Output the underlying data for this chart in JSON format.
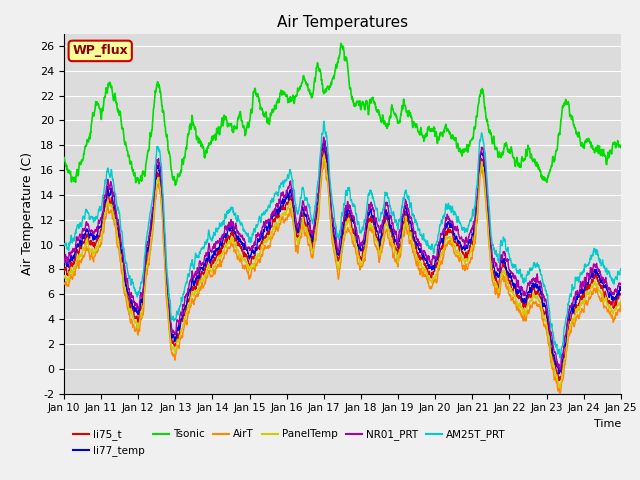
{
  "title": "Air Temperatures",
  "xlabel": "Time",
  "ylabel": "Air Temperature (C)",
  "ylim": [
    -2,
    27
  ],
  "yticks": [
    -2,
    0,
    2,
    4,
    6,
    8,
    10,
    12,
    14,
    16,
    18,
    20,
    22,
    24,
    26
  ],
  "bg_color": "#dcdcdc",
  "grid_color": "#ffffff",
  "series_order": [
    "li75_t",
    "li77_temp",
    "Tsonic",
    "AirT",
    "PanelTemp",
    "NR01_PRT",
    "AM25T_PRT"
  ],
  "series_colors": {
    "li75_t": "#dd0000",
    "li77_temp": "#0000dd",
    "Tsonic": "#00dd00",
    "AirT": "#ff8800",
    "PanelTemp": "#cccc00",
    "NR01_PRT": "#aa00aa",
    "AM25T_PRT": "#00cccc"
  },
  "series_lw": {
    "li75_t": 1.0,
    "li77_temp": 1.0,
    "Tsonic": 1.2,
    "AirT": 1.0,
    "PanelTemp": 1.0,
    "NR01_PRT": 1.0,
    "AM25T_PRT": 1.0
  },
  "wp_flux_facecolor": "#ffff99",
  "wp_flux_edgecolor": "#cc0000",
  "wp_flux_textcolor": "#880000",
  "xtick_labels": [
    "Jan 10",
    "Jan 11",
    "Jan 12",
    "Jan 13",
    "Jan 14",
    "Jan 15",
    "Jan 16",
    "Jan 17",
    "Jan 18",
    "Jan 19",
    "Jan 20",
    "Jan 21",
    "Jan 22",
    "Jan 23",
    "Jan 24",
    "Jan 25"
  ]
}
